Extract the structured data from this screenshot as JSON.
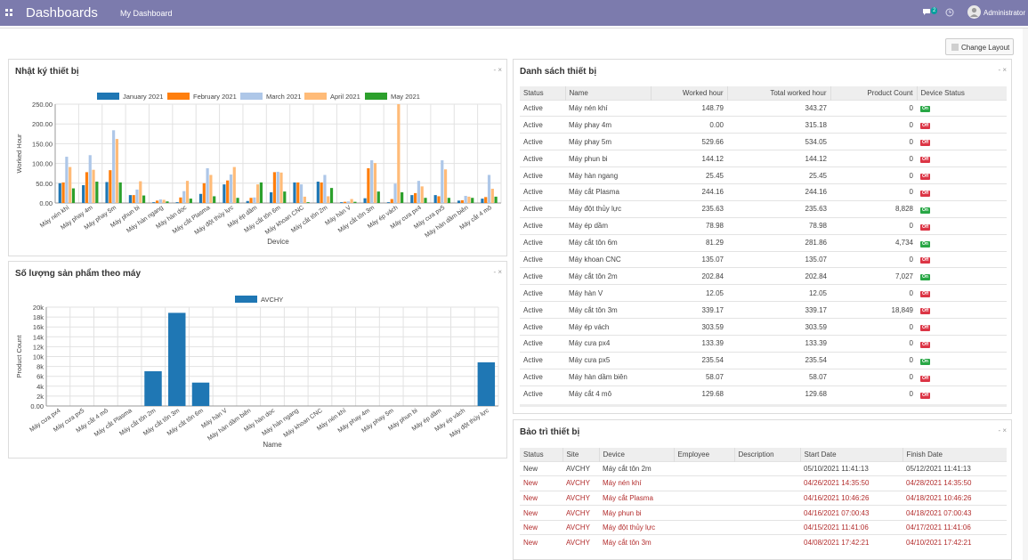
{
  "topbar": {
    "brand": "Dashboards",
    "menu": "My Dashboard",
    "notification_count": "2",
    "user": "Administrator"
  },
  "toolbar": {
    "change_layout": "Change Layout"
  },
  "panels": {
    "log": {
      "title": "Nhật ký thiết bị",
      "controls": "- ×"
    },
    "products": {
      "title": "Số lượng sản phẩm theo máy",
      "controls": "- ×"
    },
    "list": {
      "title": "Danh sách thiết bị",
      "controls": "- ×"
    },
    "maint": {
      "title": "Bảo trì thiết bị",
      "controls": "- ×"
    }
  },
  "chart_data": [
    {
      "type": "bar",
      "xlabel": "Device",
      "ylabel": "Worked Hour",
      "ylim": [
        0,
        250
      ],
      "yticks": [
        "0.00",
        "50.00",
        "100.00",
        "150.00",
        "200.00",
        "250.00"
      ],
      "legend_position": "top",
      "grid": true,
      "categories": [
        "Máy nén khí",
        "Máy phay 4m",
        "Máy phay 5m",
        "Máy phun bi",
        "Máy hàn ngang",
        "Máy hàn dọc",
        "Máy cắt Plasma",
        "Máy đột thủy lực",
        "Máy ép dầm",
        "Máy cắt tôn 6m",
        "Máy khoan CNC",
        "Máy cắt tôn 2m",
        "Máy hàn V",
        "Máy cắt tôn 3m",
        "Máy ép vách",
        "Máy cưa px4",
        "Máy cưa px5",
        "Máy hàn dầm biên",
        "Máy cắt 4 mô"
      ],
      "series": [
        {
          "name": "January 2021",
          "color": "#1f77b4",
          "values": [
            50,
            45,
            53,
            20,
            2,
            2,
            23,
            47,
            5,
            27,
            52,
            54,
            2,
            12,
            2,
            20,
            20,
            6,
            11
          ]
        },
        {
          "name": "February 2021",
          "color": "#ff7f0e",
          "values": [
            52,
            78,
            83,
            20,
            6,
            14,
            50,
            57,
            13,
            78,
            52,
            52,
            3,
            88,
            10,
            25,
            17,
            7,
            15
          ]
        },
        {
          "name": "March 2021",
          "color": "#aec7e8",
          "values": [
            117,
            121,
            184,
            34,
            9,
            30,
            88,
            72,
            14,
            79,
            47,
            71,
            4,
            108,
            49,
            56,
            108,
            18,
            71
          ]
        },
        {
          "name": "April 2021",
          "color": "#ffbb78",
          "values": [
            91,
            84,
            162,
            55,
            8,
            56,
            71,
            91,
            47,
            77,
            16,
            17,
            10,
            101,
            250,
            42,
            85,
            16,
            36
          ]
        },
        {
          "name": "May 2021",
          "color": "#2ca02c",
          "values": [
            37,
            54,
            52,
            19,
            4,
            11,
            17,
            13,
            52,
            29,
            2,
            38,
            3,
            29,
            27,
            13,
            13,
            13,
            16
          ]
        }
      ]
    },
    {
      "type": "bar",
      "xlabel": "Name",
      "ylabel": "Product Count",
      "ylim": [
        0,
        20000
      ],
      "yticks": [
        "0.00",
        "2k",
        "4k",
        "6k",
        "8k",
        "10k",
        "12k",
        "14k",
        "16k",
        "18k",
        "20k"
      ],
      "legend_position": "top",
      "grid": true,
      "categories": [
        "Máy cưa px4",
        "Máy cưa px5",
        "Máy cắt 4 mô",
        "Máy cắt Plasma",
        "Máy cắt tôn 2m",
        "Máy cắt tôn 3m",
        "Máy cắt tôn 6m",
        "Máy hàn V",
        "Máy hàn dầm biên",
        "Máy hàn dọc",
        "Máy hàn ngang",
        "Máy khoan CNC",
        "Máy nén khí",
        "Máy phay 4m",
        "Máy phay 5m",
        "Máy phun bi",
        "Máy ép dầm",
        "Máy ép vách",
        "Máy đột thủy lực"
      ],
      "series": [
        {
          "name": "AVCHY",
          "color": "#1f77b4",
          "values": [
            0,
            0,
            0,
            0,
            7027,
            18849,
            4734,
            0,
            0,
            0,
            0,
            0,
            0,
            0,
            0,
            0,
            0,
            0,
            8828
          ]
        }
      ]
    }
  ],
  "devices": {
    "columns": [
      "Status",
      "Name",
      "Worked hour",
      "Total worked hour",
      "Product Count",
      "Device Status"
    ],
    "rows": [
      [
        "Active",
        "Máy nén khí",
        "148.79",
        "343.27",
        "0",
        "On"
      ],
      [
        "Active",
        "Máy phay 4m",
        "0.00",
        "315.18",
        "0",
        "Off"
      ],
      [
        "Active",
        "Máy phay 5m",
        "529.66",
        "534.05",
        "0",
        "Off"
      ],
      [
        "Active",
        "Máy phun bi",
        "144.12",
        "144.12",
        "0",
        "Off"
      ],
      [
        "Active",
        "Máy hàn ngang",
        "25.45",
        "25.45",
        "0",
        "Off"
      ],
      [
        "Active",
        "Máy cắt Plasma",
        "244.16",
        "244.16",
        "0",
        "Off"
      ],
      [
        "Active",
        "Máy đột thủy lực",
        "235.63",
        "235.63",
        "8,828",
        "On"
      ],
      [
        "Active",
        "Máy ép dầm",
        "78.98",
        "78.98",
        "0",
        "Off"
      ],
      [
        "Active",
        "Máy cắt tôn 6m",
        "81.29",
        "281.86",
        "4,734",
        "On"
      ],
      [
        "Active",
        "Máy khoan CNC",
        "135.07",
        "135.07",
        "0",
        "Off"
      ],
      [
        "Active",
        "Máy cắt tôn 2m",
        "202.84",
        "202.84",
        "7,027",
        "On"
      ],
      [
        "Active",
        "Máy hàn V",
        "12.05",
        "12.05",
        "0",
        "Off"
      ],
      [
        "Active",
        "Máy cắt tôn 3m",
        "339.17",
        "339.17",
        "18,849",
        "Off"
      ],
      [
        "Active",
        "Máy ép vách",
        "303.59",
        "303.59",
        "0",
        "Off"
      ],
      [
        "Active",
        "Máy cưa px4",
        "133.39",
        "133.39",
        "0",
        "Off"
      ],
      [
        "Active",
        "Máy cưa px5",
        "235.54",
        "235.54",
        "0",
        "On"
      ],
      [
        "Active",
        "Máy hàn dầm biên",
        "58.07",
        "58.07",
        "0",
        "Off"
      ],
      [
        "Active",
        "Máy cắt 4 mô",
        "129.68",
        "129.68",
        "0",
        "Off"
      ]
    ]
  },
  "maintenance": {
    "columns": [
      "Status",
      "Site",
      "Device",
      "Employee",
      "Description",
      "Start Date",
      "Finish Date"
    ],
    "rows": [
      {
        "red": false,
        "cells": [
          "New",
          "AVCHY",
          "Máy cắt tôn 2m",
          "",
          "",
          "05/10/2021 11:41:13",
          "05/12/2021 11:41:13"
        ]
      },
      {
        "red": true,
        "cells": [
          "New",
          "AVCHY",
          "Máy nén khí",
          "",
          "",
          "04/26/2021 14:35:50",
          "04/28/2021 14:35:50"
        ]
      },
      {
        "red": true,
        "cells": [
          "New",
          "AVCHY",
          "Máy cắt Plasma",
          "",
          "",
          "04/16/2021 10:46:26",
          "04/18/2021 10:46:26"
        ]
      },
      {
        "red": true,
        "cells": [
          "New",
          "AVCHY",
          "Máy phun bi",
          "",
          "",
          "04/16/2021 07:00:43",
          "04/18/2021 07:00:43"
        ]
      },
      {
        "red": true,
        "cells": [
          "New",
          "AVCHY",
          "Máy đột thủy lực",
          "",
          "",
          "04/15/2021 11:41:06",
          "04/17/2021 11:41:06"
        ]
      },
      {
        "red": true,
        "cells": [
          "New",
          "AVCHY",
          "Máy cắt tôn 3m",
          "",
          "",
          "04/08/2021 17:42:21",
          "04/10/2021 17:42:21"
        ]
      }
    ]
  }
}
